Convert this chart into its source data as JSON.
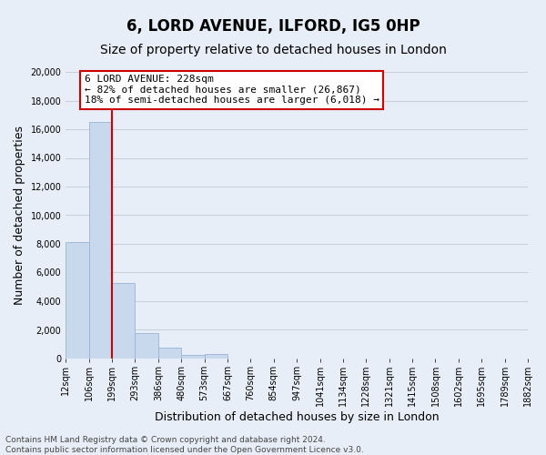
{
  "title": "6, LORD AVENUE, ILFORD, IG5 0HP",
  "subtitle": "Size of property relative to detached houses in London",
  "xlabel": "Distribution of detached houses by size in London",
  "ylabel": "Number of detached properties",
  "bar_values": [
    8100,
    16500,
    5300,
    1800,
    750,
    270,
    310,
    0,
    0,
    0,
    0,
    0,
    0,
    0,
    0,
    0,
    0,
    0,
    0,
    0
  ],
  "categories": [
    "12sqm",
    "106sqm",
    "199sqm",
    "293sqm",
    "386sqm",
    "480sqm",
    "573sqm",
    "667sqm",
    "760sqm",
    "854sqm",
    "947sqm",
    "1041sqm",
    "1134sqm",
    "1228sqm",
    "1321sqm",
    "1415sqm",
    "1508sqm",
    "1602sqm",
    "1695sqm",
    "1789sqm",
    "1882sqm"
  ],
  "bar_color": "#c8d8ed",
  "bar_edge_color": "#9ab4d4",
  "vline_x": 2,
  "vline_color": "#cc0000",
  "ylim": [
    0,
    20000
  ],
  "yticks": [
    0,
    2000,
    4000,
    6000,
    8000,
    10000,
    12000,
    14000,
    16000,
    18000,
    20000
  ],
  "annotation_title": "6 LORD AVENUE: 228sqm",
  "annotation_line1": "← 82% of detached houses are smaller (26,867)",
  "annotation_line2": "18% of semi-detached houses are larger (6,018) →",
  "annotation_box_color": "#ffffff",
  "annotation_box_edge": "#cc0000",
  "footnote1": "Contains HM Land Registry data © Crown copyright and database right 2024.",
  "footnote2": "Contains public sector information licensed under the Open Government Licence v3.0.",
  "background_color": "#e8eef8",
  "grid_color": "#c8d0dc",
  "title_fontsize": 12,
  "subtitle_fontsize": 10,
  "axis_label_fontsize": 9,
  "tick_fontsize": 7,
  "annotation_fontsize": 8,
  "footnote_fontsize": 6.5
}
